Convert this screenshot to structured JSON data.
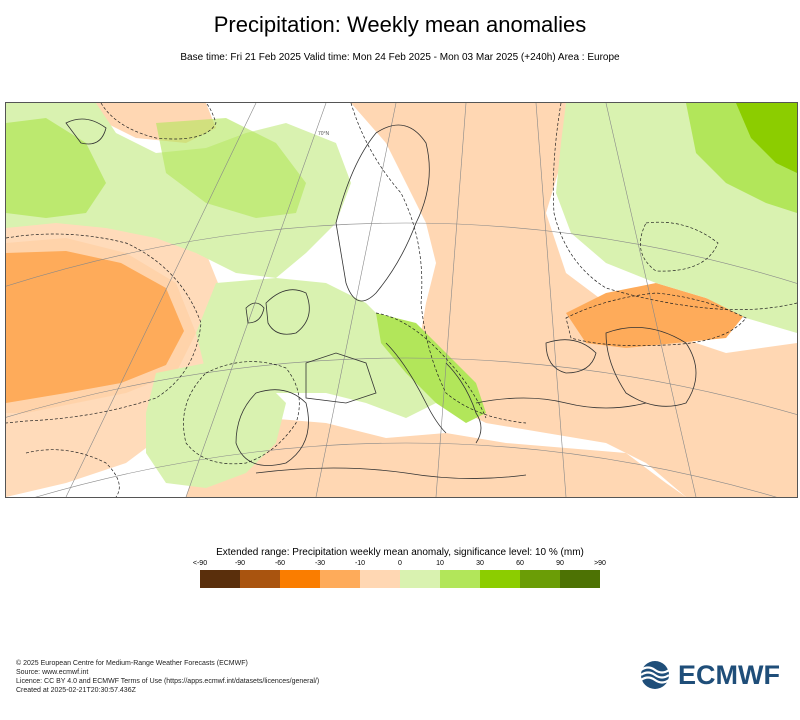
{
  "title": "Precipitation: Weekly mean anomalies",
  "subtitle": "Base time: Fri 21 Feb 2025 Valid time: Mon 24 Feb 2025 - Mon 03 Mar 2025 (+240h) Area : Europe",
  "map": {
    "area": "Europe",
    "graticule_label": "70°N"
  },
  "legend": {
    "title": "Extended range: Precipitation weekly mean anomaly, significance level: 10 % (mm)",
    "ticks": [
      "<-90",
      "-90",
      "-60",
      "-30",
      "-10",
      "0",
      "10",
      "30",
      "60",
      "90",
      ">90"
    ],
    "colors": [
      "#5a2f0c",
      "#a9540f",
      "#fa7d00",
      "#feab5a",
      "#ffd7b3",
      "#d9f2b0",
      "#b2e65a",
      "#8ccd00",
      "#6b9d06",
      "#4d7204"
    ]
  },
  "footer": {
    "line1": "© 2025 European Centre for Medium-Range Weather Forecasts (ECMWF)",
    "line2": "Source: www.ecmwf.int",
    "line3": "Licence: CC BY 4.0 and ECMWF Terms of Use (https://apps.ecmwf.int/datasets/licences/general/)",
    "line4": "Created at 2025-02-21T20:30:57.436Z"
  },
  "logo": {
    "text": "ECMWF",
    "color": "#1f4e79"
  }
}
